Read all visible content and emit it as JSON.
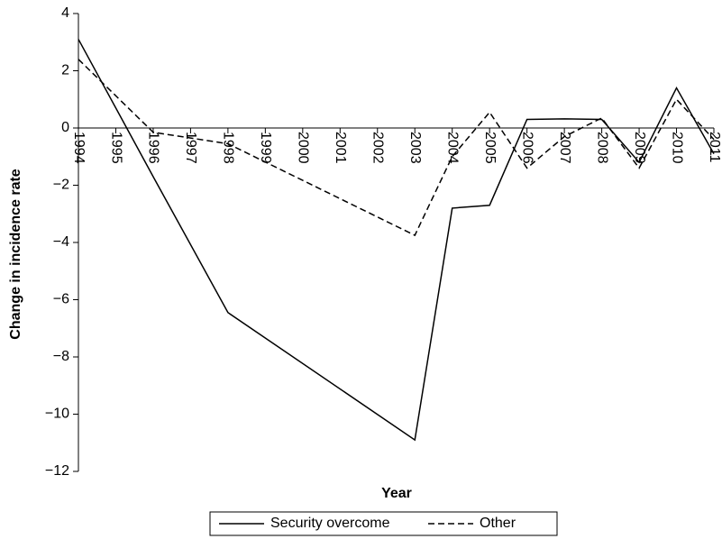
{
  "chart_data": {
    "type": "line",
    "xlabel": "Year",
    "ylabel": "Change in incidence rate",
    "x": [
      1994,
      1996,
      1998,
      2003,
      2004,
      2005,
      2006,
      2007,
      2008,
      2009,
      2010,
      2011
    ],
    "series": [
      {
        "name": "Security overcome",
        "color": "#000000",
        "dash": "solid",
        "values": [
          3.1,
          -1.7,
          -6.45,
          -10.9,
          -2.8,
          -2.7,
          0.3,
          0.32,
          0.3,
          -1.2,
          1.4,
          -0.9
        ]
      },
      {
        "name": "Other",
        "color": "#000000",
        "dash": "dashed",
        "values": [
          2.4,
          -0.15,
          -0.55,
          -3.75,
          -1.0,
          0.55,
          -1.4,
          -0.3,
          0.35,
          -1.4,
          1.0,
          -0.4
        ]
      }
    ],
    "xlim": [
      1994,
      2011
    ],
    "xticks": [
      1994,
      1995,
      1996,
      1997,
      1998,
      1999,
      2000,
      2001,
      2002,
      2003,
      2004,
      2005,
      2006,
      2007,
      2008,
      2009,
      2010,
      2011
    ],
    "ylim": [
      -12,
      4
    ],
    "yticks": [
      {
        "value": -12,
        "label": "−12"
      },
      {
        "value": -10,
        "label": "−10"
      },
      {
        "value": -8,
        "label": "−8"
      },
      {
        "value": -6,
        "label": "−6"
      },
      {
        "value": -4,
        "label": "−4"
      },
      {
        "value": -2,
        "label": "−2"
      },
      0,
      2,
      4
    ],
    "grid": false,
    "legend": "bottom"
  }
}
